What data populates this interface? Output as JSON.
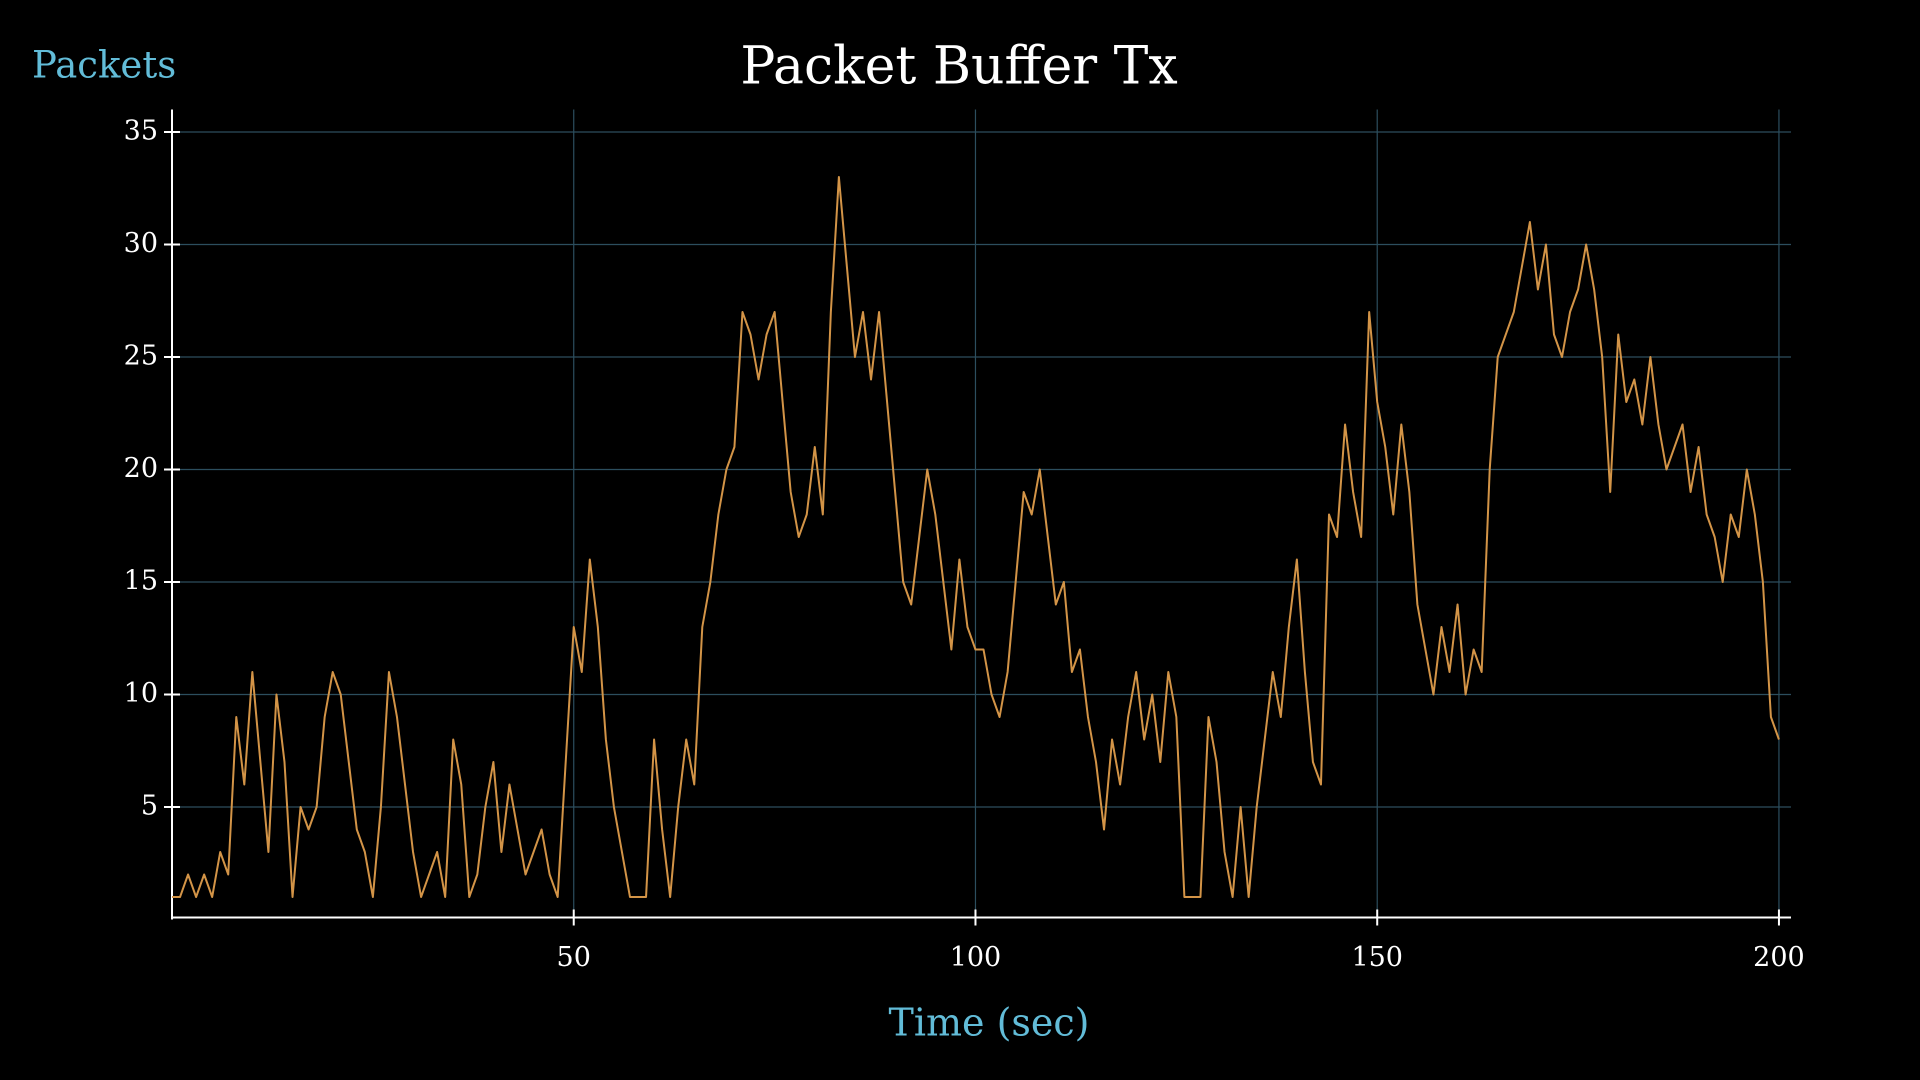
{
  "chart_data": {
    "type": "line",
    "title": "Packet Buffer Tx",
    "ylabel": "Packets",
    "xlabel": "Time (sec)",
    "x": [
      0,
      1,
      2,
      3,
      4,
      5,
      6,
      7,
      8,
      9,
      10,
      11,
      12,
      13,
      14,
      15,
      16,
      17,
      18,
      19,
      20,
      21,
      22,
      23,
      24,
      25,
      26,
      27,
      28,
      29,
      30,
      31,
      32,
      33,
      34,
      35,
      36,
      37,
      38,
      39,
      40,
      41,
      42,
      43,
      44,
      45,
      46,
      47,
      48,
      49,
      50,
      51,
      52,
      53,
      54,
      55,
      56,
      57,
      58,
      59,
      60,
      61,
      62,
      63,
      64,
      65,
      66,
      67,
      68,
      69,
      70,
      71,
      72,
      73,
      74,
      75,
      76,
      77,
      78,
      79,
      80,
      81,
      82,
      83,
      84,
      85,
      86,
      87,
      88,
      89,
      90,
      91,
      92,
      93,
      94,
      95,
      96,
      97,
      98,
      99,
      100,
      101,
      102,
      103,
      104,
      105,
      106,
      107,
      108,
      109,
      110,
      111,
      112,
      113,
      114,
      115,
      116,
      117,
      118,
      119,
      120,
      121,
      122,
      123,
      124,
      125,
      126,
      127,
      128,
      129,
      130,
      131,
      132,
      133,
      134,
      135,
      136,
      137,
      138,
      139,
      140,
      141,
      142,
      143,
      144,
      145,
      146,
      147,
      148,
      149,
      150,
      151,
      152,
      153,
      154,
      155,
      156,
      157,
      158,
      159,
      160,
      161,
      162,
      163,
      164,
      165,
      166,
      167,
      168,
      169,
      170,
      171,
      172,
      173,
      174,
      175,
      176,
      177,
      178,
      179,
      180,
      181,
      182,
      183,
      184,
      185,
      186,
      187,
      188,
      189,
      190,
      191,
      192,
      193,
      194,
      195,
      196,
      197,
      198,
      199,
      200
    ],
    "series": [
      {
        "color": "#d39447",
        "values": [
          1,
          1,
          2,
          1,
          2,
          1,
          3,
          2,
          9,
          6,
          11,
          7,
          3,
          10,
          7,
          1,
          5,
          4,
          5,
          9,
          11,
          10,
          7,
          4,
          3,
          1,
          5,
          11,
          9,
          6,
          3,
          1,
          2,
          3,
          1,
          8,
          6,
          1,
          2,
          5,
          7,
          3,
          6,
          4,
          2,
          3,
          4,
          2,
          1,
          7,
          13,
          11,
          16,
          13,
          8,
          5,
          3,
          1,
          1,
          1,
          8,
          4,
          1,
          5,
          8,
          6,
          13,
          15,
          18,
          20,
          21,
          27,
          26,
          24,
          26,
          27,
          23,
          19,
          17,
          18,
          21,
          18,
          27,
          33,
          29,
          25,
          27,
          24,
          27,
          23,
          19,
          15,
          14,
          17,
          20,
          18,
          15,
          12,
          16,
          13,
          12,
          12,
          10,
          9,
          11,
          15,
          19,
          18,
          20,
          17,
          14,
          15,
          11,
          12,
          9,
          7,
          4,
          8,
          6,
          9,
          11,
          8,
          10,
          7,
          11,
          9,
          1,
          1,
          1,
          9,
          7,
          3,
          1,
          5,
          1,
          5,
          8,
          11,
          9,
          13,
          16,
          11,
          7,
          6,
          18,
          17,
          22,
          19,
          17,
          27,
          23,
          21,
          18,
          22,
          19,
          14,
          12,
          10,
          13,
          11,
          14,
          10,
          12,
          11,
          20,
          25,
          26,
          27,
          29,
          31,
          28,
          30,
          26,
          25,
          27,
          28,
          30,
          28,
          25,
          19,
          26,
          23,
          24,
          22,
          25,
          22,
          20,
          21,
          22,
          19,
          21,
          18,
          17,
          15,
          18,
          17,
          20,
          18,
          15,
          9,
          8
        ]
      }
    ],
    "xlim": [
      0,
      201.5
    ],
    "ylim": [
      0,
      36
    ],
    "xticks": [
      50,
      100,
      150,
      200
    ],
    "yticks": [
      5,
      10,
      15,
      20,
      25,
      30,
      35
    ],
    "grid": true
  }
}
